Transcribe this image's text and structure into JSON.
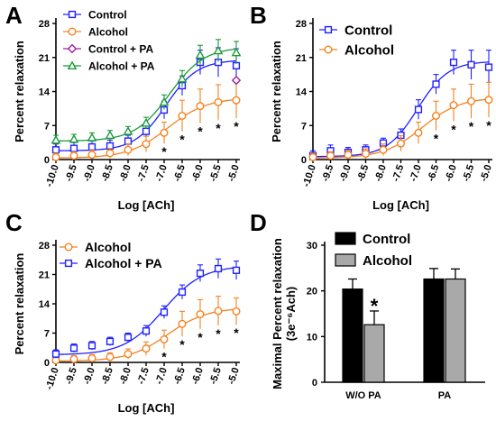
{
  "chart_data": [
    {
      "panel": "A",
      "type": "line",
      "xlabel": "Log [ACh]",
      "ylabel": "Percent relaxation",
      "xlim": [
        -10.0,
        -5.0
      ],
      "ylim": [
        0,
        28
      ],
      "x_ticks": [
        "-10.0",
        "-9.5",
        "-9.0",
        "-8.5",
        "-8.0",
        "-7.5",
        "-7.0",
        "-6.5",
        "-6.0",
        "-5.5",
        "-5.0"
      ],
      "y_ticks": [
        "0",
        "7",
        "14",
        "21",
        "28"
      ],
      "legend_position": "top-left",
      "x": [
        -10.0,
        -9.5,
        -9.0,
        -8.5,
        -8.0,
        -7.5,
        -7.0,
        -6.5,
        -6.0,
        -5.5,
        -5.0
      ],
      "series": [
        {
          "name": "Control",
          "color": "#1f1fff",
          "marker": "square",
          "values": [
            2.0,
            2.3,
            2.6,
            2.8,
            3.8,
            5.8,
            10.2,
            15.2,
            20.0,
            20.0,
            19.3
          ],
          "errors": [
            1.2,
            1.2,
            1.2,
            1.2,
            1.2,
            1.3,
            1.8,
            2.0,
            2.5,
            3.0,
            3.5
          ]
        },
        {
          "name": "Alcohol",
          "color": "#f58220",
          "marker": "circle",
          "values": [
            0.5,
            0.8,
            1.0,
            1.3,
            2.0,
            3.2,
            5.5,
            9.0,
            11.0,
            11.8,
            12.2
          ],
          "errors": [
            0.8,
            0.8,
            0.9,
            1.0,
            1.2,
            1.6,
            2.2,
            3.2,
            3.5,
            3.6,
            3.7
          ]
        },
        {
          "name": "Control + PA",
          "color": "#a020a0",
          "marker": "diamond",
          "values": [
            null,
            null,
            null,
            null,
            null,
            null,
            null,
            null,
            null,
            null,
            16.3
          ],
          "errors": [
            null,
            null,
            null,
            null,
            null,
            null,
            null,
            null,
            null,
            null,
            0
          ]
        },
        {
          "name": "Alcohol + PA",
          "color": "#1a9a3a",
          "marker": "triangle",
          "values": [
            4.0,
            4.2,
            4.5,
            5.0,
            5.8,
            7.5,
            11.8,
            16.6,
            21.5,
            22.4,
            22.0
          ],
          "errors": [
            1.0,
            1.0,
            1.0,
            1.0,
            1.0,
            1.2,
            1.5,
            1.7,
            2.0,
            2.3,
            2.3
          ]
        }
      ],
      "significance_marks": [
        {
          "x": -7.0,
          "label": "*"
        },
        {
          "x": -6.5,
          "label": "*"
        },
        {
          "x": -6.0,
          "label": "*"
        },
        {
          "x": -5.5,
          "label": "*"
        },
        {
          "x": -5.0,
          "label": "*"
        }
      ]
    },
    {
      "panel": "B",
      "type": "line",
      "xlabel": "Log [ACh]",
      "ylabel": "Percent relaxation",
      "xlim": [
        -10.0,
        -5.0
      ],
      "ylim": [
        0,
        28
      ],
      "x_ticks": [
        "-10.0",
        "-9.5",
        "-9.0",
        "-8.5",
        "-8.0",
        "-7.5",
        "-7.0",
        "-6.5",
        "-6.0",
        "-5.5",
        "-5.0"
      ],
      "y_ticks": [
        "0",
        "7",
        "14",
        "21",
        "28"
      ],
      "legend_position": "top-left",
      "x": [
        -10.0,
        -9.5,
        -9.0,
        -8.5,
        -8.0,
        -7.5,
        -7.0,
        -6.5,
        -6.0,
        -5.5,
        -5.0
      ],
      "series": [
        {
          "name": "Control",
          "color": "#1f1fff",
          "marker": "square",
          "values": [
            0.8,
            1.8,
            1.5,
            2.0,
            3.4,
            5.0,
            10.3,
            15.5,
            20.0,
            19.5,
            19.0
          ],
          "errors": [
            1.0,
            1.2,
            1.0,
            1.0,
            1.0,
            1.3,
            2.0,
            2.0,
            2.5,
            3.0,
            3.5
          ]
        },
        {
          "name": "Alcohol",
          "color": "#f58220",
          "marker": "circle",
          "values": [
            0.5,
            0.8,
            1.0,
            1.2,
            2.0,
            3.3,
            5.5,
            9.0,
            11.2,
            12.0,
            12.3
          ],
          "errors": [
            0.8,
            0.8,
            0.9,
            1.0,
            1.2,
            1.6,
            2.2,
            3.0,
            3.3,
            3.5,
            3.6
          ]
        }
      ],
      "significance_marks": [
        {
          "x": -6.5,
          "label": "*"
        },
        {
          "x": -6.0,
          "label": "*"
        },
        {
          "x": -5.5,
          "label": "*"
        },
        {
          "x": -5.0,
          "label": "*"
        }
      ]
    },
    {
      "panel": "C",
      "type": "line",
      "xlabel": "Log [ACh]",
      "ylabel": "Percent relaxation",
      "xlim": [
        -10.0,
        -5.0
      ],
      "ylim": [
        0,
        28
      ],
      "x_ticks": [
        "-10.0",
        "-9.5",
        "-9.0",
        "-8.5",
        "-8.0",
        "-7.5",
        "-7.0",
        "-6.5",
        "-6.0",
        "-5.5",
        "-5.0"
      ],
      "y_ticks": [
        "0",
        "7",
        "14",
        "21",
        "28"
      ],
      "legend_position": "top-left",
      "x": [
        -10.0,
        -9.5,
        -9.0,
        -8.5,
        -8.0,
        -7.5,
        -7.0,
        -6.5,
        -6.0,
        -5.5,
        -5.0
      ],
      "series": [
        {
          "name": "Alcohol",
          "color": "#f58220",
          "marker": "circle",
          "values": [
            0.5,
            0.8,
            1.0,
            1.3,
            2.0,
            3.3,
            5.5,
            9.2,
            11.5,
            12.3,
            12.2
          ],
          "errors": [
            0.8,
            0.8,
            0.9,
            1.0,
            1.2,
            1.6,
            2.2,
            3.0,
            3.5,
            3.5,
            3.2
          ]
        },
        {
          "name": "Alcohol + PA",
          "color": "#1f1fff",
          "marker": "square",
          "values": [
            2.0,
            3.4,
            4.0,
            5.0,
            6.0,
            7.5,
            12.0,
            16.8,
            21.3,
            22.4,
            22.0
          ],
          "errors": [
            1.0,
            1.0,
            1.0,
            1.0,
            1.0,
            1.3,
            1.5,
            1.7,
            2.0,
            2.3,
            2.2
          ]
        }
      ],
      "significance_marks": [
        {
          "x": -7.0,
          "label": "*"
        },
        {
          "x": -6.5,
          "label": "*"
        },
        {
          "x": -6.0,
          "label": "*"
        },
        {
          "x": -5.5,
          "label": "*"
        },
        {
          "x": -5.0,
          "label": "*"
        }
      ]
    },
    {
      "panel": "D",
      "type": "bar",
      "xlabel": "",
      "ylabel": "Maximal Percent relaxation",
      "ylabel_line2": "(3e⁻⁶Ach)",
      "ylim": [
        0,
        30
      ],
      "y_ticks": [
        "0",
        "10",
        "20",
        "30"
      ],
      "categories": [
        "W/O PA",
        "PA"
      ],
      "legend_position": "top-left",
      "series": [
        {
          "name": "Control",
          "color": "#000000",
          "values": [
            20.4,
            22.6
          ],
          "errors": [
            2.2,
            2.3
          ]
        },
        {
          "name": "Alcohol",
          "color": "#a9a9a9",
          "values": [
            12.6,
            22.6
          ],
          "errors": [
            3.0,
            2.2
          ]
        }
      ],
      "significance_marks": [
        {
          "category": "W/O PA",
          "series": "Alcohol",
          "label": "*"
        }
      ]
    }
  ]
}
